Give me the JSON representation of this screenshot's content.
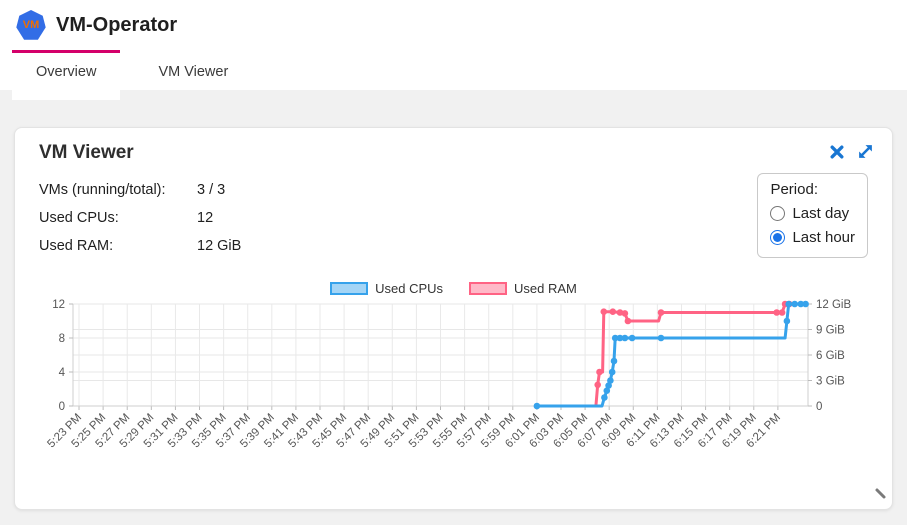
{
  "header": {
    "title": "VM-Operator",
    "logo_text": "VM"
  },
  "tabs": {
    "overview": {
      "label": "Overview",
      "active": true
    },
    "vm_viewer": {
      "label": "VM Viewer",
      "active": false
    }
  },
  "card": {
    "title": "VM Viewer",
    "stats": [
      {
        "label": "VMs (running/total):",
        "value": "3 / 3"
      },
      {
        "label": "Used CPUs:",
        "value": "12"
      },
      {
        "label": "Used RAM:",
        "value": "12 GiB"
      }
    ],
    "period": {
      "label": "Period:",
      "options": [
        {
          "label": "Last day",
          "selected": false
        },
        {
          "label": "Last hour",
          "selected": true
        }
      ]
    }
  },
  "icons": {
    "close": "close-icon",
    "expand": "expand-diagonal-icon",
    "resize": "resize-handle-icon"
  },
  "colors": {
    "tab_indicator": "#d4006a",
    "icon_blue": "#1976d2",
    "logo_blue": "#326de6",
    "logo_text": "#f06f00",
    "page_bg": "#f1f1f1",
    "used_cpus": "#36a2eb",
    "used_ram": "#ff6384"
  },
  "chart_data": {
    "type": "line",
    "title": "",
    "legend_position": "top",
    "grid": true,
    "x_axis": {
      "unit": "time",
      "tick_interval_minutes": 2,
      "domain_minutes_after_first_tick": [
        -0.5,
        60.5
      ],
      "tick_labels": [
        "5:23 PM",
        "5:25 PM",
        "5:27 PM",
        "5:29 PM",
        "5:31 PM",
        "5:33 PM",
        "5:35 PM",
        "5:37 PM",
        "5:39 PM",
        "5:41 PM",
        "5:43 PM",
        "5:45 PM",
        "5:47 PM",
        "5:49 PM",
        "5:51 PM",
        "5:53 PM",
        "5:55 PM",
        "5:57 PM",
        "5:59 PM",
        "6:01 PM",
        "6:03 PM",
        "6:05 PM",
        "6:07 PM",
        "6:09 PM",
        "6:11 PM",
        "6:13 PM",
        "6:15 PM",
        "6:17 PM",
        "6:19 PM",
        "6:21 PM"
      ]
    },
    "left_axis": {
      "title": "",
      "range": [
        0,
        12
      ],
      "ticks": [
        0,
        4,
        8,
        12
      ]
    },
    "right_axis": {
      "title": "",
      "range": [
        0,
        12
      ],
      "values": [
        0,
        3,
        6,
        9,
        12
      ],
      "ticks": [
        "0",
        "3 GiB",
        "6 GiB",
        "9 GiB",
        "12 GiB"
      ]
    },
    "series": [
      {
        "name": "Used CPUs",
        "axis": "left",
        "color": "#36a2eb",
        "fill": "rgba(54,162,235,0.45)",
        "points_format": "[minutes_after_5:23PM, value, marker_dot]",
        "points": [
          [
            38,
            0,
            1
          ],
          [
            43.4,
            0,
            0
          ],
          [
            43.6,
            1,
            1
          ],
          [
            43.8,
            1.8,
            1
          ],
          [
            43.95,
            2.4,
            1
          ],
          [
            44.1,
            3,
            1
          ],
          [
            44.25,
            4,
            1
          ],
          [
            44.4,
            5.3,
            1
          ],
          [
            44.5,
            8,
            1
          ],
          [
            44.9,
            8,
            1
          ],
          [
            45.3,
            8,
            1
          ],
          [
            45.9,
            8,
            1
          ],
          [
            48.3,
            8,
            1
          ],
          [
            58.6,
            8,
            0
          ],
          [
            58.75,
            10,
            1
          ],
          [
            58.9,
            12,
            1
          ],
          [
            59.4,
            12,
            1
          ],
          [
            59.9,
            12,
            1
          ],
          [
            60.3,
            12,
            1
          ]
        ]
      },
      {
        "name": "Used RAM",
        "axis": "right",
        "color": "#ff6384",
        "fill": "rgba(255,99,132,0.45)",
        "points_format": "[minutes_after_5:23PM, GiB, marker_dot]",
        "points": [
          [
            38,
            0,
            0
          ],
          [
            42.9,
            0,
            0
          ],
          [
            43.05,
            2.5,
            1
          ],
          [
            43.2,
            4,
            1
          ],
          [
            43.45,
            4,
            0
          ],
          [
            43.55,
            11.1,
            1
          ],
          [
            44.3,
            11.1,
            1
          ],
          [
            44.9,
            11,
            1
          ],
          [
            45.3,
            10.9,
            1
          ],
          [
            45.55,
            10,
            1
          ],
          [
            48.1,
            10,
            0
          ],
          [
            48.3,
            11,
            1
          ],
          [
            57.9,
            11,
            1
          ],
          [
            58.35,
            11,
            1
          ],
          [
            58.6,
            12,
            1
          ],
          [
            58.95,
            12,
            1
          ]
        ]
      }
    ]
  }
}
